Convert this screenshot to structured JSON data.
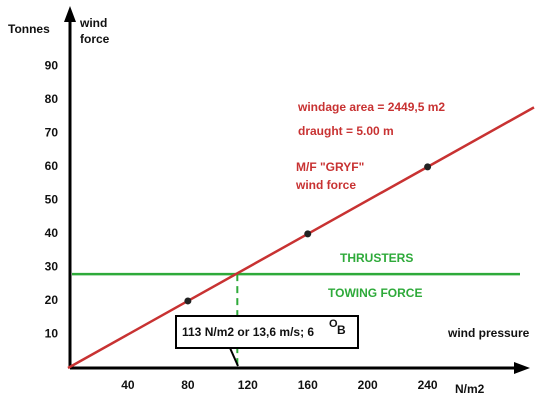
{
  "chart_data": {
    "type": "line",
    "y_label": "Tonnes",
    "series_label": [
      "wind",
      "force"
    ],
    "x_unit": "N/m2",
    "x_label": "wind  pressure",
    "xlim": [
      0,
      305
    ],
    "xticks": [
      40,
      80,
      120,
      160,
      200,
      240
    ],
    "ylim": [
      0,
      105
    ],
    "yticks": [
      10,
      20,
      30,
      40,
      50,
      60,
      70,
      80,
      90
    ],
    "series": [
      {
        "name": "wind force",
        "color": "#c83232",
        "x": [
          0,
          80,
          160,
          240,
          311
        ],
        "values": [
          0,
          20,
          40,
          60,
          77.75
        ]
      }
    ],
    "points": {
      "color": "#222",
      "x": [
        80,
        160,
        240
      ],
      "values": [
        20,
        40,
        60
      ]
    },
    "thrusters": {
      "label": "THRUSTERS",
      "color": "#2eaa3a",
      "value": 28
    },
    "towing_label": "TOWING  FORCE",
    "crossing": {
      "x": 113,
      "color": "#2eaa3a"
    },
    "annotations": [
      "windage area = 2449,5 m2",
      "draught = 5.00 m",
      "M/F \"GRYF\"",
      "wind force"
    ],
    "box_label": [
      "113 N/m2  or 13,6 m/s;  6",
      "O",
      "B"
    ]
  }
}
